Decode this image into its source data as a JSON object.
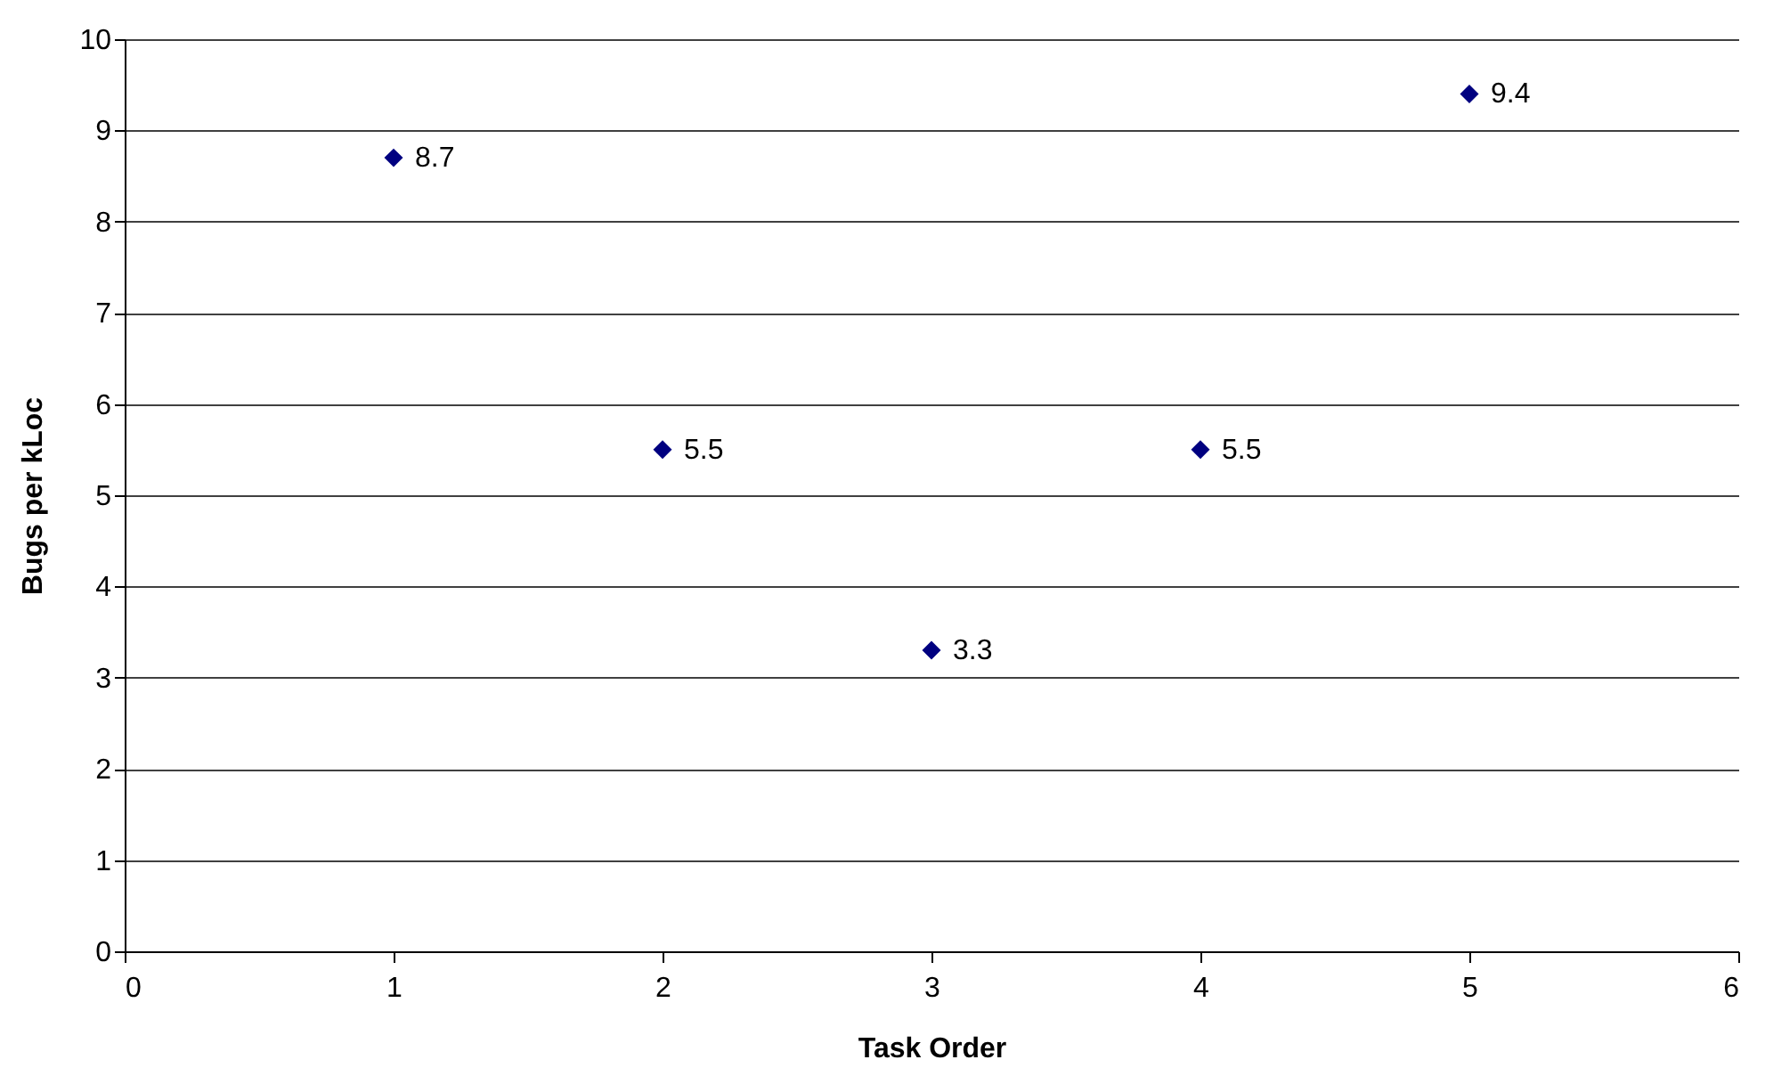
{
  "chart_data": {
    "type": "scatter",
    "xlabel": "Task Order",
    "ylabel": "Bugs per kLoc",
    "x": [
      1,
      2,
      3,
      4,
      5
    ],
    "series": [
      {
        "color": "#000080",
        "values": [
          8.7,
          5.5,
          3.3,
          5.5,
          9.4
        ]
      }
    ],
    "xlim": [
      0,
      6
    ],
    "xticks": [
      0,
      1,
      2,
      3,
      4,
      5,
      6
    ],
    "ylim": [
      0,
      10
    ],
    "yticks": [
      0,
      1,
      2,
      3,
      4,
      5,
      6,
      7,
      8,
      9,
      10
    ],
    "grid": "y",
    "marker": "diamond",
    "data_labels": true
  }
}
